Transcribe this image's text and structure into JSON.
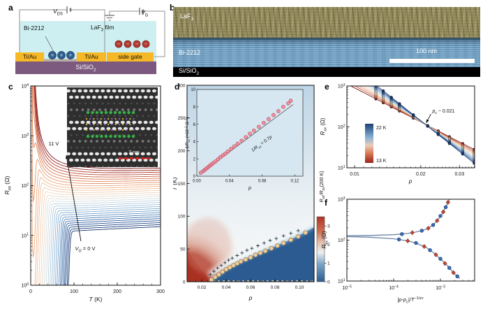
{
  "panels": {
    "a": "a",
    "b": "b",
    "c": "c",
    "d": "d",
    "e": "e",
    "f": "f"
  },
  "panel_a": {
    "vds_main": "V",
    "vds_sub": "DS",
    "vg_main": "V",
    "vg_sub": "G",
    "bi2212": "Bi-2212",
    "laf3_main": "LaF",
    "laf3_sub": "3",
    "laf3_post": " film",
    "ti_au_left": "Ti/Au",
    "ti_au_mid": "Ti/Au",
    "side_gate": "side gate",
    "substrate_main": "Si/SiO",
    "substrate_sub": "2",
    "plus": "+",
    "minus": "−",
    "colors": {
      "film": "#cdeff1",
      "electrode": "#f6b826",
      "substrate": "#7c5a80",
      "hole": "#2f5f90",
      "electron": "#b23a33",
      "flake": "#b7ada4"
    }
  },
  "panel_b": {
    "laf3_main": "LaF",
    "laf3_sub": "3",
    "bi2212": "Bi-2212",
    "substrate_main": "Si/SiO",
    "substrate_sub": "2",
    "scalebar": "100 nm"
  },
  "diverging_palette": [
    [
      0,
      "#16356d"
    ],
    [
      0.13,
      "#2c5ba0"
    ],
    [
      0.27,
      "#6f9fca"
    ],
    [
      0.4,
      "#a8c8de"
    ],
    [
      0.5,
      "#d9e0df"
    ],
    [
      0.6,
      "#f2d4ba"
    ],
    [
      0.72,
      "#eeab7d"
    ],
    [
      0.84,
      "#d5714c"
    ],
    [
      0.93,
      "#b03a2c"
    ],
    [
      1,
      "#7c1717"
    ]
  ],
  "chart_data": [
    {
      "panel": "c",
      "type": "line",
      "xlabel_segs": [
        {
          "t": "T",
          "i": 1
        },
        {
          "t": " (K)"
        }
      ],
      "ylabel_segs": [
        {
          "t": "R",
          "i": 1
        },
        {
          "t": "xx",
          "sub": 1,
          "i": 1
        },
        {
          "t": " (Ω)"
        }
      ],
      "xlim": [
        0,
        300
      ],
      "ylog": true,
      "ylim": [
        1,
        10000
      ],
      "xticks": [
        0,
        100,
        200,
        300
      ],
      "xtick_labels": [
        "0",
        "100",
        "200",
        "300"
      ],
      "ytick_exps": [
        0,
        1,
        2,
        3,
        4
      ],
      "annotation_top": "11 V",
      "annotation_bottom_segs": [
        {
          "t": "V",
          "i": 1
        },
        {
          "t": "G",
          "sub": 1,
          "i": 1
        },
        {
          "t": " = 0 V"
        }
      ],
      "inset_scalebar": "2 nm",
      "series_param": {
        "n": 30,
        "vg_min": 0,
        "vg_max": 11,
        "r300_min": 15,
        "r300_max": 225,
        "tc": [
          91,
          88,
          85,
          82,
          79,
          76,
          73,
          70,
          66,
          62,
          58,
          54,
          50,
          46,
          42,
          38,
          34,
          30,
          26,
          22,
          19,
          16,
          13,
          10,
          8,
          6,
          0,
          0,
          0,
          0
        ],
        "ins": [
          0,
          0,
          0,
          0,
          0,
          0,
          0.6,
          1.2,
          2,
          2.8,
          3.6,
          4.5,
          5.5,
          6.5,
          8,
          9.5,
          11,
          13,
          15,
          17,
          19,
          22,
          25,
          28,
          31,
          34,
          37,
          40,
          43,
          46
        ]
      }
    },
    {
      "panel": "d",
      "type": "heatmap",
      "xlabel_segs": [
        {
          "t": "p",
          "i": 1
        }
      ],
      "ylabel_segs": [
        {
          "t": "T",
          "i": 1
        },
        {
          "t": " (K)"
        }
      ],
      "xlim": [
        0.008,
        0.112
      ],
      "ylim": [
        0,
        300
      ],
      "xticks": [
        0.02,
        0.04,
        0.06,
        0.08,
        0.1
      ],
      "xtick_labels": [
        "0.02",
        "0.04",
        "0.06",
        "0.08",
        "0.10"
      ],
      "yticks": [
        0,
        50,
        100,
        150,
        200,
        250,
        300
      ],
      "colorbar": {
        "label_segs": [
          {
            "t": "R",
            "i": 1
          },
          {
            "t": "xx",
            "sub": 1,
            "i": 1
          },
          {
            "t": "/R",
            "i": 1
          },
          {
            "t": "xx",
            "sub": 1,
            "i": 1
          },
          {
            "t": "(200 K)"
          }
        ],
        "ticks": [
          0,
          1,
          2,
          3
        ],
        "vmax": 3.5
      },
      "tc_dome": [
        [
          0.028,
          3
        ],
        [
          0.031,
          7
        ],
        [
          0.034,
          11
        ],
        [
          0.037,
          15
        ],
        [
          0.04,
          19
        ],
        [
          0.043,
          22
        ],
        [
          0.046,
          25
        ],
        [
          0.049,
          28
        ],
        [
          0.052,
          31
        ],
        [
          0.056,
          34
        ],
        [
          0.06,
          37
        ],
        [
          0.064,
          41
        ],
        [
          0.068,
          44
        ],
        [
          0.072,
          47
        ],
        [
          0.077,
          51
        ],
        [
          0.082,
          55
        ],
        [
          0.087,
          59
        ],
        [
          0.093,
          64
        ],
        [
          0.099,
          69
        ],
        [
          0.105,
          75
        ]
      ],
      "t_onset_plus": [
        [
          0.027,
          11
        ],
        [
          0.03,
          16
        ],
        [
          0.033,
          21
        ],
        [
          0.036,
          25
        ],
        [
          0.039,
          29
        ],
        [
          0.042,
          33
        ],
        [
          0.045,
          36
        ],
        [
          0.049,
          40
        ],
        [
          0.053,
          44
        ],
        [
          0.057,
          48
        ],
        [
          0.061,
          51
        ],
        [
          0.066,
          55
        ],
        [
          0.071,
          59
        ],
        [
          0.076,
          63
        ],
        [
          0.081,
          66
        ],
        [
          0.087,
          70
        ],
        [
          0.093,
          74
        ],
        [
          0.099,
          78
        ]
      ],
      "dome_line": [
        [
          0.0265,
          0
        ],
        [
          0.03,
          6
        ],
        [
          0.035,
          12
        ],
        [
          0.04,
          19
        ],
        [
          0.05,
          29
        ],
        [
          0.06,
          38
        ],
        [
          0.07,
          46
        ],
        [
          0.08,
          54
        ],
        [
          0.09,
          62
        ],
        [
          0.1,
          71
        ],
        [
          0.112,
          83
        ]
      ]
    },
    {
      "panel": "d_inset",
      "type": "scatter",
      "xlabel_segs": [
        {
          "t": "p",
          "i": 1
        }
      ],
      "ylabel_segs": [
        {
          "t": "1/R",
          "i": 1
        },
        {
          "t": "xx",
          "sub": 1,
          "i": 1
        },
        {
          "t": " (×10"
        },
        {
          "t": "−2",
          "sup": 1
        },
        {
          "t": " Ω"
        },
        {
          "t": "−1",
          "sup": 1
        },
        {
          "t": ")"
        }
      ],
      "xlim": [
        0,
        0.13
      ],
      "ylim": [
        0,
        10
      ],
      "xticks": [
        0,
        0.04,
        0.08,
        0.12
      ],
      "xtick_labels": [
        "0.00",
        "0.04",
        "0.08",
        "0.12"
      ],
      "yticks": [
        0,
        2,
        4,
        6,
        8,
        10
      ],
      "fit_label_segs": [
        {
          "t": "1/R",
          "i": 1
        },
        {
          "t": "xx",
          "sub": 1,
          "i": 1
        },
        {
          "t": " = 0.7",
          "i": 0
        },
        {
          "t": "p",
          "i": 1
        }
      ],
      "fit_slope_per_unit_p": 0.7,
      "points": [
        [
          0.005,
          0.4
        ],
        [
          0.008,
          0.6
        ],
        [
          0.01,
          0.75
        ],
        [
          0.012,
          0.9
        ],
        [
          0.014,
          1.05
        ],
        [
          0.016,
          1.2
        ],
        [
          0.018,
          1.35
        ],
        [
          0.02,
          1.5
        ],
        [
          0.023,
          1.7
        ],
        [
          0.026,
          1.95
        ],
        [
          0.029,
          2.2
        ],
        [
          0.032,
          2.4
        ],
        [
          0.035,
          2.6
        ],
        [
          0.038,
          2.85
        ],
        [
          0.042,
          3.15
        ],
        [
          0.046,
          3.45
        ],
        [
          0.05,
          3.75
        ],
        [
          0.055,
          4.1
        ],
        [
          0.06,
          4.5
        ],
        [
          0.065,
          4.9
        ],
        [
          0.07,
          5.25
        ],
        [
          0.076,
          5.7
        ],
        [
          0.082,
          6.15
        ],
        [
          0.088,
          6.6
        ],
        [
          0.094,
          7.05
        ],
        [
          0.1,
          7.5
        ],
        [
          0.106,
          8.0
        ],
        [
          0.112,
          8.4
        ],
        [
          0.115,
          8.7
        ]
      ]
    },
    {
      "panel": "e",
      "type": "line",
      "xlog": true,
      "ylog": true,
      "xlabel_segs": [
        {
          "t": "p",
          "i": 1
        }
      ],
      "ylabel_segs": [
        {
          "t": "R",
          "i": 1
        },
        {
          "t": "xx",
          "sub": 1,
          "i": 1
        },
        {
          "t": " (Ω)"
        }
      ],
      "xlim": [
        0.0092,
        0.0352
      ],
      "ylim": [
        10,
        1000
      ],
      "xticks": [
        0.01,
        0.02,
        0.03
      ],
      "xtick_labels": [
        "0.01",
        "0.02",
        "0.03"
      ],
      "ytick_exps": [
        1,
        2,
        3
      ],
      "p_points": [
        0.0125,
        0.0135,
        0.0147,
        0.016,
        0.0185,
        0.0215,
        0.024,
        0.027,
        0.031,
        0.035
      ],
      "temps": [
        13,
        14,
        15,
        16,
        17,
        18,
        19,
        20,
        21,
        22
      ],
      "crossing": {
        "pc": 0.021,
        "rc": 115
      },
      "k_min": 2.77,
      "k_max": 4.27,
      "legend": {
        "top": "22 K",
        "bottom": "13 K"
      },
      "annotation_segs": [
        {
          "t": "p",
          "i": 1
        },
        {
          "t": "c",
          "sub": 1,
          "i": 1
        },
        {
          "t": " ~ 0.021"
        }
      ]
    },
    {
      "panel": "f",
      "type": "scatter",
      "xlog": true,
      "ylog": true,
      "xlabel_segs": [
        {
          "t": "|p",
          "i": 1
        },
        {
          "t": "-p",
          "i": 1
        },
        {
          "t": "c",
          "sub": 1,
          "i": 1
        },
        {
          "t": "|/T",
          "i": 1
        },
        {
          "t": "−1/zν",
          "sup": 1
        }
      ],
      "ylabel_segs": [
        {
          "t": "R",
          "i": 1
        },
        {
          "t": "xx",
          "sub": 1,
          "i": 1
        },
        {
          "t": " (Ω)"
        }
      ],
      "xlim": [
        1e-05,
        0.0053
      ],
      "ylim": [
        10,
        1000
      ],
      "xtick_exps": [
        -5,
        -4,
        -3
      ],
      "ytick_exps": [
        1,
        2,
        3
      ],
      "branch_upper": {
        "line": [
          [
            1e-05,
            128
          ],
          [
            3e-05,
            130
          ],
          [
            0.0001,
            136
          ],
          [
            0.0002,
            146
          ],
          [
            0.0003,
            158
          ],
          [
            0.0005,
            185
          ],
          [
            0.0007,
            235
          ],
          [
            0.0009,
            320
          ],
          [
            0.0011,
            450
          ],
          [
            0.0013,
            640
          ],
          [
            0.0015,
            900
          ],
          [
            0.0016,
            1050
          ]
        ],
        "points": [
          [
            0.00015,
            141
          ],
          [
            0.00025,
            152
          ],
          [
            0.0004,
            170
          ],
          [
            0.00055,
            195
          ],
          [
            0.0007,
            235
          ],
          [
            0.00085,
            300
          ],
          [
            0.001,
            390
          ],
          [
            0.00115,
            490
          ],
          [
            0.0013,
            640
          ],
          [
            0.00145,
            840
          ]
        ]
      },
      "branch_lower": {
        "line": [
          [
            1e-05,
            122
          ],
          [
            3e-05,
            118
          ],
          [
            0.0001,
            108
          ],
          [
            0.0002,
            96
          ],
          [
            0.0003,
            85
          ],
          [
            0.0005,
            66
          ],
          [
            0.0007,
            50
          ],
          [
            0.001,
            35
          ],
          [
            0.0014,
            24
          ],
          [
            0.0019,
            16
          ],
          [
            0.0024,
            12.5
          ],
          [
            0.0026,
            11.5
          ]
        ],
        "points": [
          [
            0.00013,
            104
          ],
          [
            0.0002,
            96
          ],
          [
            0.0003,
            85
          ],
          [
            0.00045,
            70
          ],
          [
            0.0006,
            57
          ],
          [
            0.0008,
            44
          ],
          [
            0.001,
            35
          ],
          [
            0.00125,
            27
          ],
          [
            0.00155,
            21
          ],
          [
            0.0019,
            16
          ],
          [
            0.0023,
            13
          ]
        ]
      }
    }
  ]
}
